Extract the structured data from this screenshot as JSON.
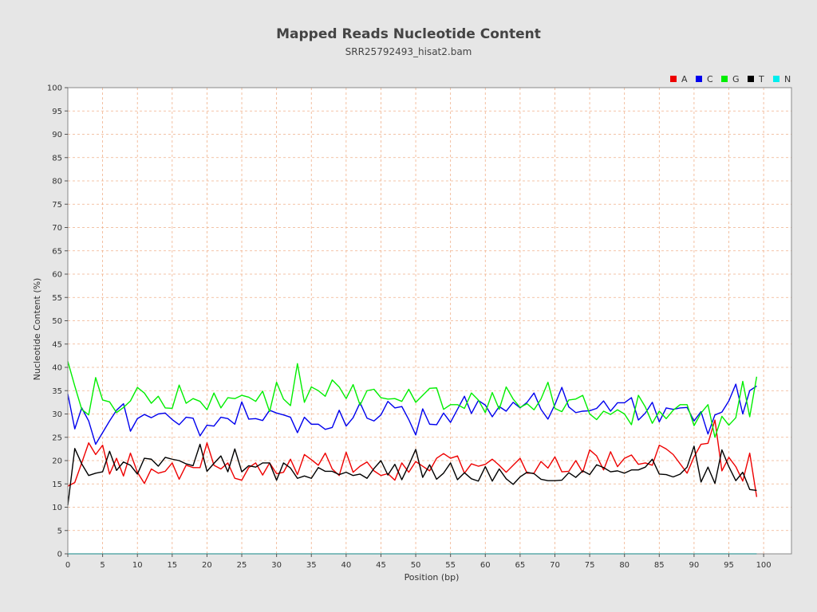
{
  "chart_data": {
    "type": "line",
    "title": "Mapped Reads Nucleotide Content",
    "subtitle": "SRR25792493_hisat2.bam",
    "xlabel": "Position (bp)",
    "ylabel": "Nucleotide Content (%)",
    "xlim": [
      0,
      104
    ],
    "ylim": [
      0,
      100
    ],
    "x_ticks": [
      0,
      5,
      10,
      15,
      20,
      25,
      30,
      35,
      40,
      45,
      50,
      55,
      60,
      65,
      70,
      75,
      80,
      85,
      90,
      95,
      100
    ],
    "y_ticks": [
      0,
      5,
      10,
      15,
      20,
      25,
      30,
      35,
      40,
      45,
      50,
      55,
      60,
      65,
      70,
      75,
      80,
      85,
      90,
      95,
      100
    ],
    "grid": true,
    "legend_position": "top-right",
    "colors": {
      "background": "#e6e6e6",
      "plot_background": "#ffffff",
      "grid": "#f0b08a",
      "A": "#ee0000",
      "C": "#0000ee",
      "G": "#00ee00",
      "T": "#000000",
      "N": "#00eeee"
    },
    "x": [
      0,
      1,
      2,
      3,
      4,
      5,
      6,
      7,
      8,
      9,
      10,
      11,
      12,
      13,
      14,
      15,
      16,
      17,
      18,
      19,
      20,
      21,
      22,
      23,
      24,
      25,
      26,
      27,
      28,
      29,
      30,
      31,
      32,
      33,
      34,
      35,
      36,
      37,
      38,
      39,
      40,
      41,
      42,
      43,
      44,
      45,
      46,
      47,
      48,
      49,
      50,
      51,
      52,
      53,
      54,
      55,
      56,
      57,
      58,
      59,
      60,
      61,
      62,
      63,
      64,
      65,
      66,
      67,
      68,
      69,
      70,
      71,
      72,
      73,
      74,
      75,
      76,
      77,
      78,
      79,
      80,
      81,
      82,
      83,
      84,
      85,
      86,
      87,
      88,
      89,
      90,
      91,
      92,
      93,
      94,
      95,
      96,
      97,
      98,
      99
    ],
    "series": [
      {
        "name": "A",
        "values": [
          14.5,
          15.3,
          19.5,
          23.8,
          21.3,
          23.3,
          17.1,
          20.5,
          16.7,
          21.6,
          17.5,
          15.1,
          18.2,
          17.3,
          17.7,
          19.5,
          16.0,
          19.0,
          18.5,
          18.5,
          23.8,
          19.0,
          18.2,
          19.5,
          16.2,
          15.8,
          18.5,
          19.5,
          16.9,
          19.5,
          17.2,
          17.5,
          20.3,
          17.0,
          21.3,
          20.2,
          19.0,
          21.6,
          18.2,
          16.8,
          21.8,
          17.5,
          18.8,
          19.7,
          17.8,
          16.8,
          17.2,
          15.8,
          19.5,
          17.5,
          19.8,
          18.8,
          17.8,
          20.5,
          21.5,
          20.5,
          21.0,
          17.3,
          19.3,
          18.8,
          19.2,
          20.3,
          19.0,
          17.5,
          19.0,
          20.5,
          17.3,
          17.3,
          19.8,
          18.4,
          20.8,
          17.6,
          17.7,
          20.0,
          17.5,
          22.3,
          21.0,
          18.0,
          21.9,
          18.7,
          20.5,
          21.2,
          19.2,
          19.5,
          19.0,
          23.3,
          22.5,
          21.3,
          19.3,
          17.3,
          20.8,
          23.5,
          23.7,
          28.7,
          17.8,
          20.7,
          18.7,
          15.6,
          21.6,
          12.2
        ]
      },
      {
        "name": "C",
        "values": [
          34.3,
          26.8,
          31.3,
          28.5,
          23.5,
          26.0,
          28.5,
          30.8,
          32.2,
          26.3,
          29.0,
          29.9,
          29.2,
          30.0,
          30.2,
          28.8,
          27.7,
          29.3,
          29.1,
          25.3,
          27.6,
          27.4,
          29.3,
          29.0,
          27.8,
          32.6,
          28.9,
          29.0,
          28.6,
          30.8,
          30.2,
          29.8,
          29.3,
          26.0,
          29.3,
          27.8,
          27.8,
          26.7,
          27.1,
          30.8,
          27.4,
          29.2,
          32.4,
          29.1,
          28.5,
          29.8,
          32.7,
          31.3,
          31.6,
          28.8,
          25.5,
          31.1,
          27.8,
          27.7,
          30.2,
          28.2,
          31.0,
          33.8,
          30.1,
          32.9,
          31.9,
          29.4,
          31.6,
          30.6,
          32.5,
          31.3,
          32.5,
          34.5,
          31.0,
          28.9,
          32.0,
          35.7,
          31.5,
          30.3,
          30.6,
          30.7,
          31.2,
          32.8,
          30.6,
          32.4,
          32.4,
          33.5,
          28.7,
          30.2,
          32.5,
          28.3,
          31.3,
          31.0,
          31.3,
          31.4,
          28.5,
          30.5,
          25.7,
          29.8,
          30.4,
          32.8,
          36.4,
          30.0,
          35.0,
          36.0
        ]
      },
      {
        "name": "G",
        "values": [
          41.3,
          36.0,
          31.0,
          29.8,
          37.8,
          33.0,
          32.6,
          30.3,
          31.4,
          32.8,
          35.7,
          34.5,
          32.3,
          33.8,
          31.3,
          31.2,
          36.2,
          32.3,
          33.3,
          32.7,
          30.9,
          34.5,
          31.3,
          33.5,
          33.3,
          34.0,
          33.6,
          32.7,
          34.9,
          30.5,
          36.8,
          33.2,
          31.8,
          40.8,
          32.5,
          35.8,
          35.0,
          33.8,
          37.3,
          35.8,
          33.3,
          36.3,
          31.9,
          35.0,
          35.3,
          33.5,
          33.2,
          33.3,
          32.7,
          35.3,
          32.5,
          34.0,
          35.5,
          35.6,
          31.0,
          32.0,
          32.0,
          31.2,
          34.5,
          33.0,
          30.3,
          34.6,
          31.0,
          35.8,
          33.2,
          31.4,
          32.2,
          30.9,
          33.2,
          36.8,
          31.2,
          30.5,
          33.0,
          33.2,
          34.0,
          30.0,
          28.8,
          30.6,
          29.9,
          30.9,
          30.0,
          27.7,
          34.0,
          31.5,
          28.0,
          30.6,
          29.0,
          30.8,
          32.0,
          32.0,
          27.5,
          30.2,
          32.0,
          25.0,
          29.5,
          27.6,
          29.2,
          37.0,
          29.4,
          38.0
        ]
      },
      {
        "name": "T",
        "values": [
          10.4,
          22.6,
          19.3,
          16.8,
          17.3,
          17.6,
          22.0,
          17.9,
          19.7,
          19.0,
          17.1,
          20.5,
          20.3,
          18.8,
          20.7,
          20.3,
          20.0,
          19.3,
          18.9,
          23.5,
          17.7,
          19.4,
          21.0,
          17.6,
          22.5,
          17.6,
          18.9,
          18.6,
          19.5,
          19.5,
          15.8,
          19.5,
          18.4,
          16.2,
          16.7,
          16.2,
          18.5,
          17.7,
          17.7,
          17.0,
          17.5,
          16.8,
          17.1,
          16.2,
          18.3,
          20.0,
          16.9,
          19.2,
          15.9,
          19.0,
          22.4,
          16.4,
          19.1,
          16.0,
          17.3,
          19.5,
          15.9,
          17.4,
          16.1,
          15.6,
          18.7,
          15.6,
          18.2,
          16.1,
          14.9,
          16.5,
          17.5,
          17.2,
          16.0,
          15.7,
          15.7,
          15.8,
          17.4,
          16.4,
          17.8,
          17.0,
          19.1,
          18.5,
          17.6,
          17.8,
          17.3,
          18.0,
          18.0,
          18.6,
          20.3,
          17.1,
          17.0,
          16.5,
          17.1,
          18.6,
          23.1,
          15.4,
          18.6,
          15.1,
          22.3,
          18.7,
          15.7,
          17.5,
          13.8,
          13.6
        ]
      },
      {
        "name": "N",
        "values": [
          0,
          0,
          0,
          0,
          0,
          0,
          0,
          0,
          0,
          0,
          0,
          0,
          0,
          0,
          0,
          0,
          0,
          0,
          0,
          0,
          0,
          0,
          0,
          0,
          0,
          0,
          0,
          0,
          0,
          0,
          0,
          0,
          0,
          0,
          0,
          0,
          0,
          0,
          0,
          0,
          0,
          0,
          0,
          0,
          0,
          0,
          0,
          0,
          0,
          0,
          0,
          0,
          0,
          0,
          0,
          0,
          0,
          0,
          0,
          0,
          0,
          0,
          0,
          0,
          0,
          0,
          0,
          0,
          0,
          0,
          0,
          0,
          0,
          0,
          0,
          0,
          0,
          0,
          0,
          0,
          0,
          0,
          0,
          0,
          0,
          0,
          0,
          0,
          0,
          0,
          0,
          0,
          0,
          0,
          0,
          0,
          0,
          0,
          0,
          0
        ]
      }
    ]
  }
}
